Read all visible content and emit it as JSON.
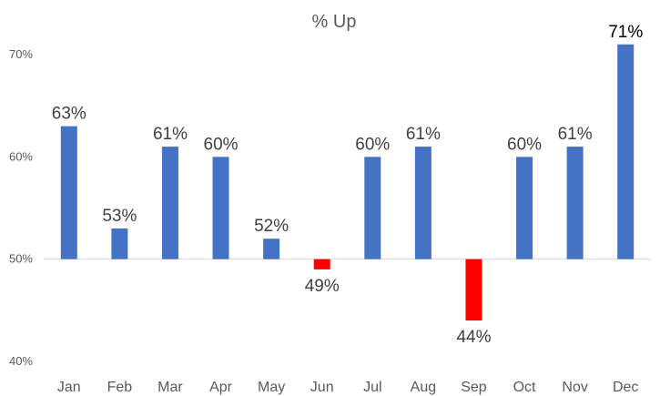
{
  "chart_data": {
    "type": "bar",
    "title": "% Up",
    "xlabel": "",
    "ylabel": "",
    "categories": [
      "Jan",
      "Feb",
      "Mar",
      "Apr",
      "May",
      "Jun",
      "Jul",
      "Aug",
      "Sep",
      "Oct",
      "Nov",
      "Dec"
    ],
    "values": [
      63,
      53,
      61,
      60,
      52,
      49,
      60,
      61,
      44,
      60,
      61,
      71
    ],
    "data_labels": [
      "63%",
      "53%",
      "61%",
      "60%",
      "52%",
      "49%",
      "60%",
      "61%",
      "44%",
      "60%",
      "61%",
      "71%"
    ],
    "ylim": [
      40,
      70
    ],
    "baseline": 50,
    "y_ticks": [
      {
        "value": 70,
        "label": "70%"
      },
      {
        "value": 60,
        "label": "60%"
      },
      {
        "value": 50,
        "label": "50%"
      },
      {
        "value": 40,
        "label": "40%"
      }
    ],
    "grid": false,
    "legend": "none",
    "colors": {
      "positive": "#4472c4",
      "negative": "#ff0000"
    }
  }
}
